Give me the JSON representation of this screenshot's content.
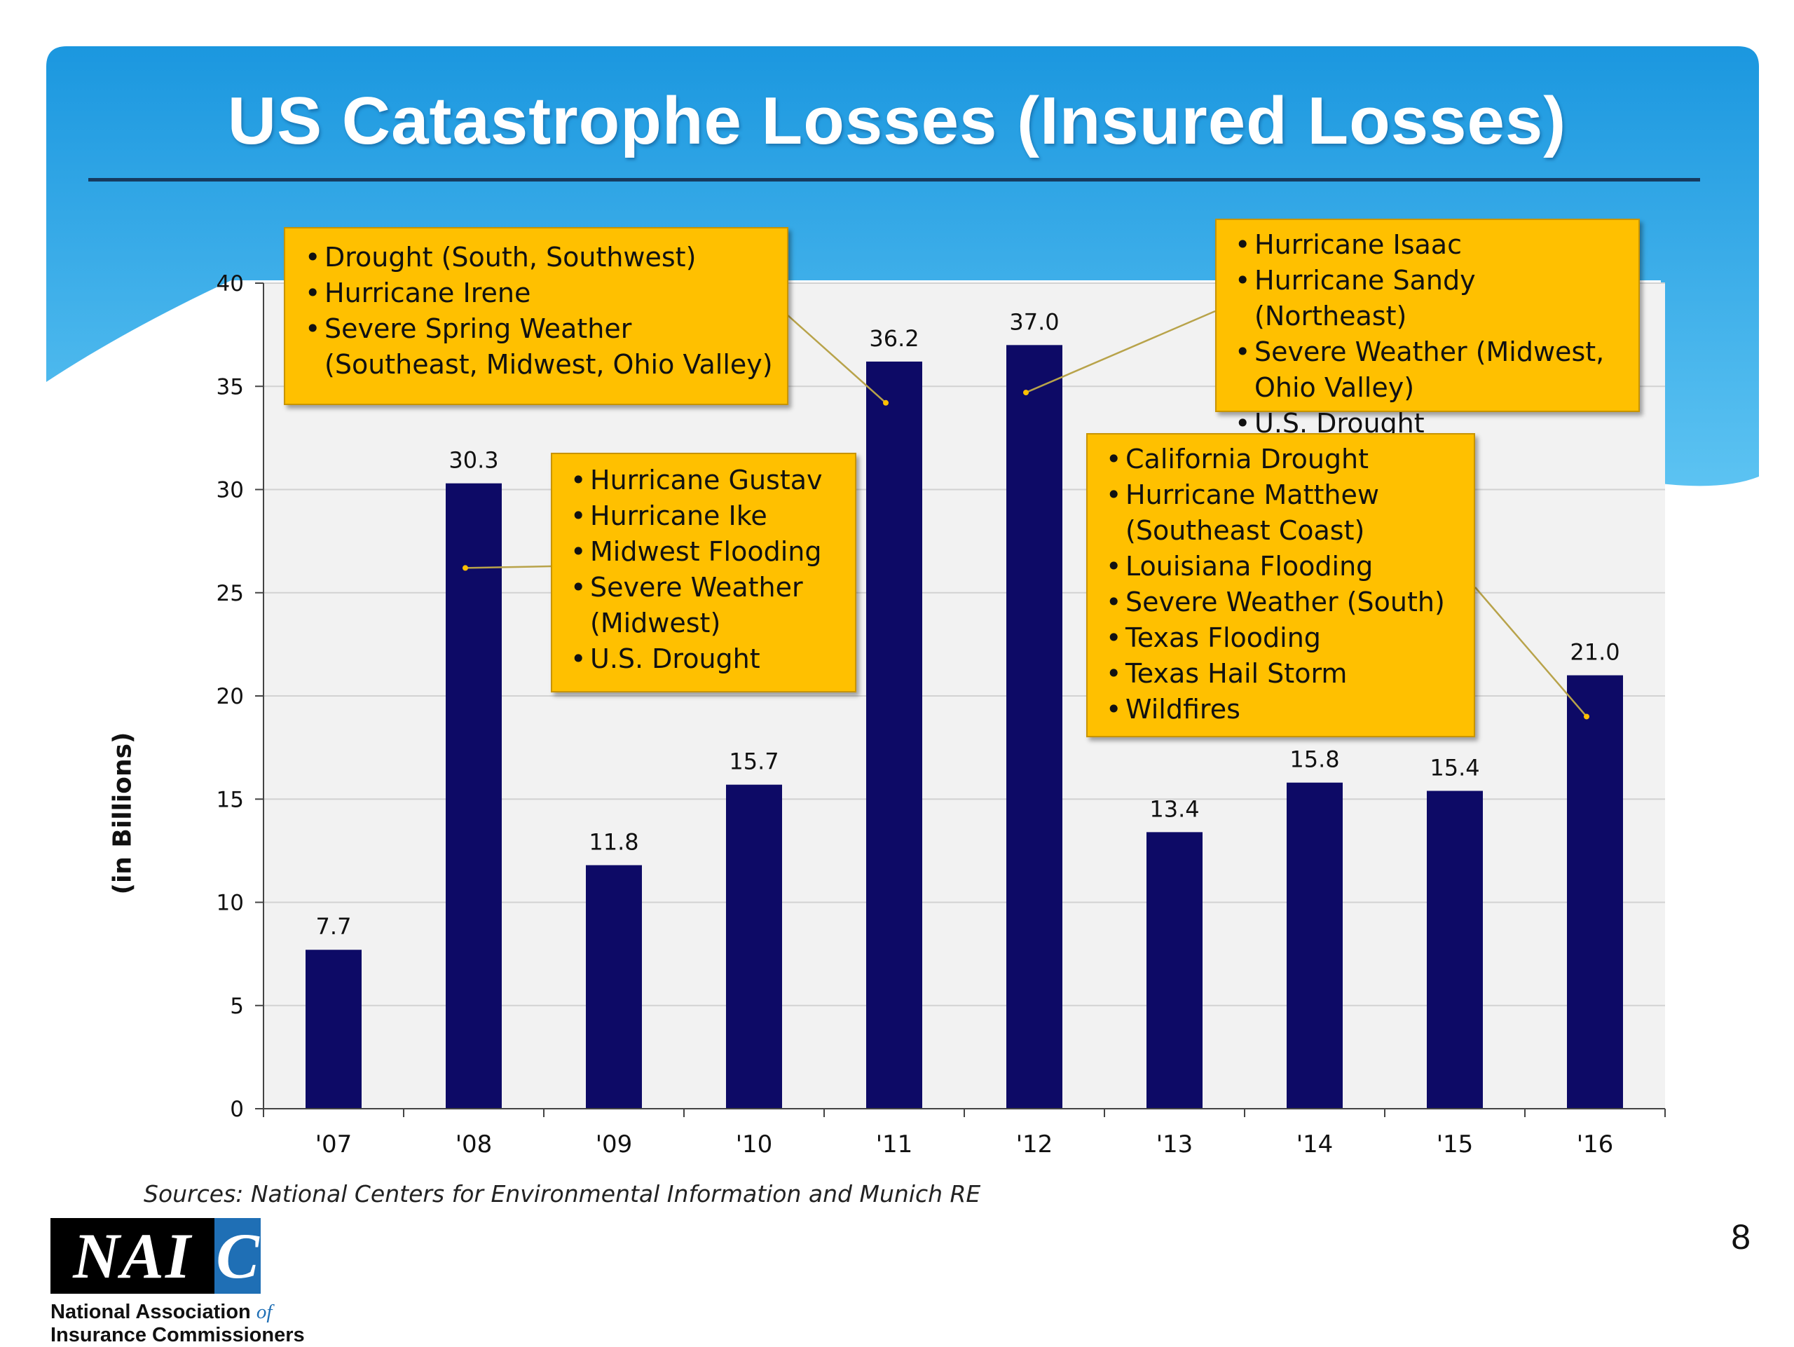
{
  "slide": {
    "title": "US Catastrophe Losses (Insured Losses)",
    "page_number": "8",
    "sources": "Sources: National Centers for Environmental Information and Munich RE"
  },
  "logo": {
    "letters_main": "NAI",
    "letters_accent": "C",
    "line1": "National Association",
    "line1_suffix": "of",
    "line2": "Insurance Commissioners"
  },
  "chart_data": {
    "type": "bar",
    "title": "",
    "xlabel": "",
    "ylabel": "(in Billions)",
    "categories": [
      "'07",
      "'08",
      "'09",
      "'10",
      "'11",
      "'12",
      "'13",
      "'14",
      "'15",
      "'16"
    ],
    "values": [
      7.7,
      30.3,
      11.8,
      15.7,
      36.2,
      37.0,
      13.4,
      15.8,
      15.4,
      21.0
    ],
    "value_labels": [
      "7.7",
      "30.3",
      "11.8",
      "15.7",
      "36.2",
      "37.0",
      "13.4",
      "15.8",
      "15.4",
      "21.0"
    ],
    "ylim": [
      0,
      40
    ],
    "yticks": [
      "0",
      "5",
      "10",
      "15",
      "20",
      "25",
      "30",
      "35",
      "40"
    ],
    "grid": true,
    "colors": {
      "bar": "#0d0a66",
      "callout": "#ffc000",
      "header": "#27a4e6"
    },
    "annotations": [
      {
        "category": "'11",
        "items": [
          "Drought (South, Southwest)",
          "Hurricane Irene",
          "Severe Spring Weather (Southeast, Midwest, Ohio Valley)"
        ]
      },
      {
        "category": "'08",
        "items": [
          "Hurricane Gustav",
          "Hurricane Ike",
          "Midwest Flooding",
          "Severe Weather (Midwest)",
          "U.S. Drought"
        ]
      },
      {
        "category": "'12",
        "items": [
          "Hurricane Isaac",
          "Hurricane Sandy (Northeast)",
          "Severe Weather (Midwest, Ohio Valley)",
          "U.S. Drought"
        ]
      },
      {
        "category": "'16",
        "items": [
          "California Drought",
          "Hurricane Matthew (Southeast Coast)",
          "Louisiana Flooding",
          "Severe Weather (South)",
          "Texas Flooding",
          "Texas Hail Storm",
          "Wildfires"
        ]
      }
    ]
  }
}
